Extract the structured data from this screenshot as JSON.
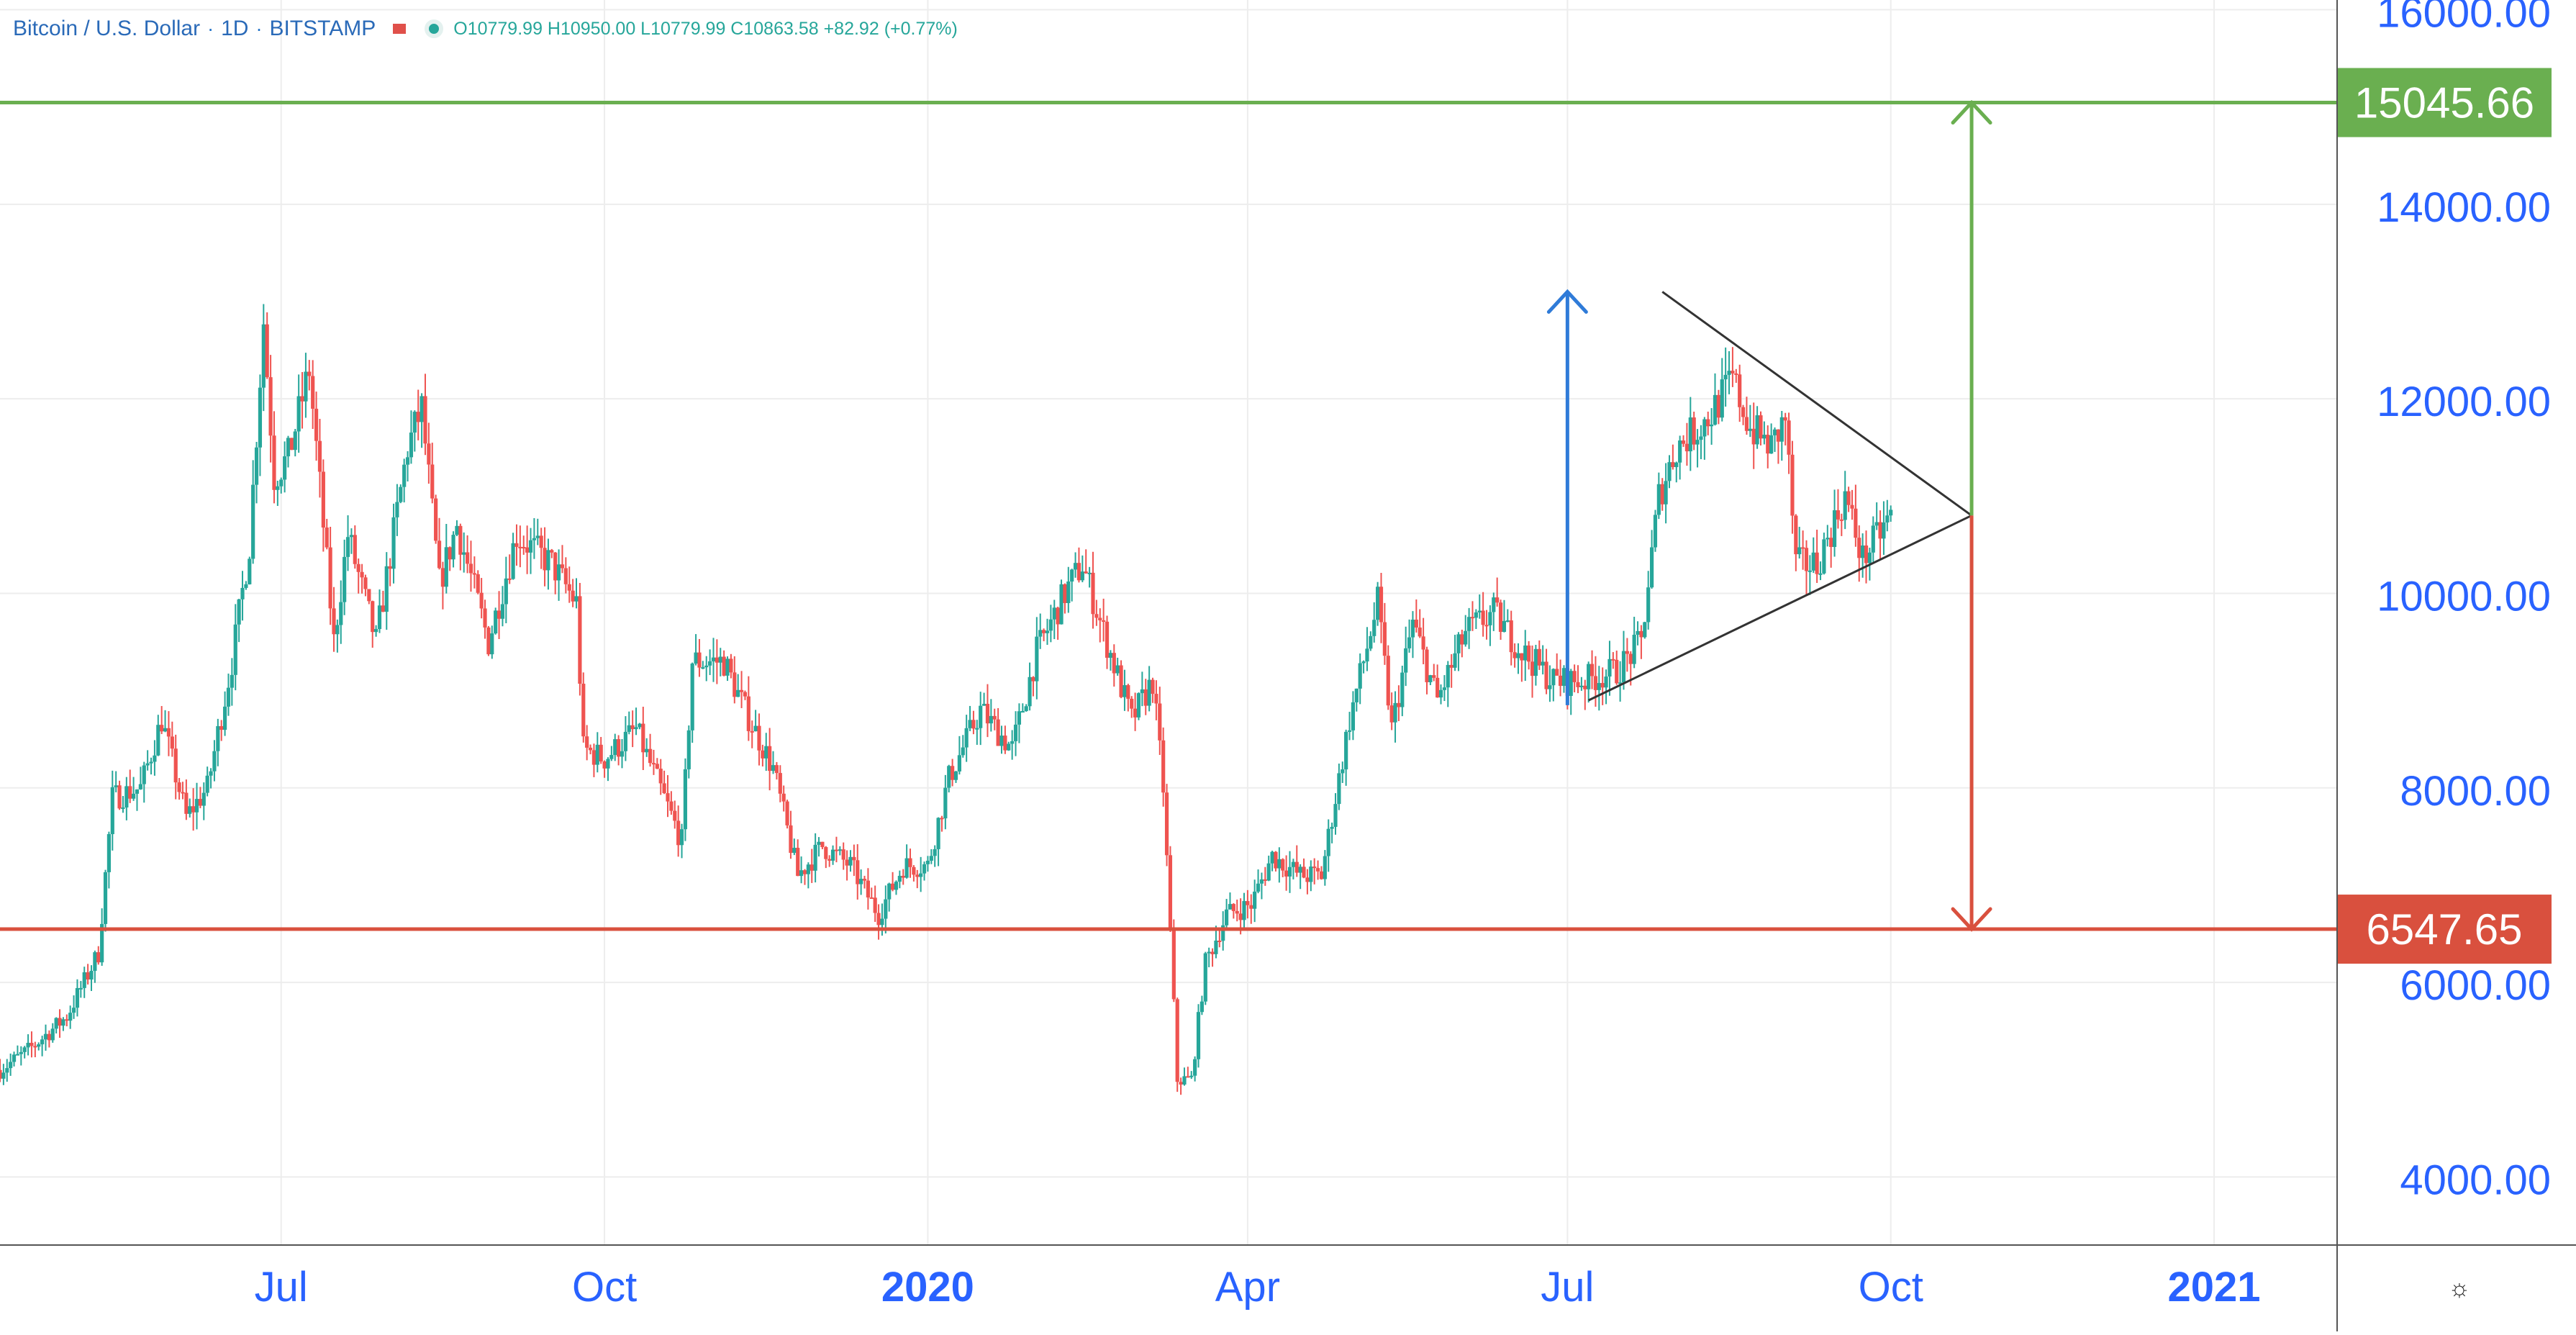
{
  "header": {
    "symbol": "Bitcoin / U.S. Dollar",
    "interval": "1D",
    "exchange": "BITSTAMP",
    "separator": "·",
    "ohlc": "O10779.99 H10950.00 L10779.99 C10863.58 +82.92 (+0.77%)"
  },
  "colors": {
    "up": "#26a69a",
    "down": "#ef5350",
    "axis_text": "#2962ff",
    "green_line": "#6aaf50",
    "red_line": "#d9503e",
    "blue_arrow": "#2f7bd8",
    "triangle": "#333333",
    "grid": "#ededed"
  },
  "icons": {
    "settings": "settings-icon"
  },
  "chart_data": {
    "type": "candlestick",
    "y_axis": {
      "ticks": [
        4000,
        6000,
        8000,
        10000,
        12000,
        14000,
        16000
      ],
      "tick_labels": [
        "4000.00",
        "6000.00",
        "8000.00",
        "10000.00",
        "12000.00",
        "14000.00",
        "16000.00"
      ],
      "range": [
        3300,
        16100
      ],
      "position": "right"
    },
    "x_axis": {
      "range": [
        "2019-04-12",
        "2021-02-05"
      ],
      "ticks": [
        {
          "date": "2019-07-01",
          "label": "Jul",
          "bold": false
        },
        {
          "date": "2019-10-01",
          "label": "Oct",
          "bold": false
        },
        {
          "date": "2020-01-01",
          "label": "2020",
          "bold": true
        },
        {
          "date": "2020-04-01",
          "label": "Apr",
          "bold": false
        },
        {
          "date": "2020-07-01",
          "label": "Jul",
          "bold": false
        },
        {
          "date": "2020-10-01",
          "label": "Oct",
          "bold": false
        },
        {
          "date": "2021-01-01",
          "label": "2021",
          "bold": true
        }
      ]
    },
    "grid": true,
    "price_path": [
      [
        "2019-04-12",
        5100
      ],
      [
        "2019-04-20",
        5300
      ],
      [
        "2019-05-01",
        5650
      ],
      [
        "2019-05-10",
        6300
      ],
      [
        "2019-05-14",
        7900
      ],
      [
        "2019-05-22",
        8000
      ],
      [
        "2019-05-28",
        8700
      ],
      [
        "2019-06-04",
        7700
      ],
      [
        "2019-06-10",
        8000
      ],
      [
        "2019-06-17",
        9300
      ],
      [
        "2019-06-22",
        10500
      ],
      [
        "2019-06-26",
        12800
      ],
      [
        "2019-06-29",
        11200
      ],
      [
        "2019-07-03",
        11400
      ],
      [
        "2019-07-09",
        12300
      ],
      [
        "2019-07-16",
        9500
      ],
      [
        "2019-07-20",
        10600
      ],
      [
        "2019-07-28",
        9500
      ],
      [
        "2019-08-06",
        11500
      ],
      [
        "2019-08-10",
        11900
      ],
      [
        "2019-08-15",
        10100
      ],
      [
        "2019-08-20",
        10700
      ],
      [
        "2019-08-29",
        9500
      ],
      [
        "2019-09-06",
        10600
      ],
      [
        "2019-09-16",
        10300
      ],
      [
        "2019-09-23",
        9900
      ],
      [
        "2019-09-25",
        8400
      ],
      [
        "2019-10-01",
        8300
      ],
      [
        "2019-10-10",
        8600
      ],
      [
        "2019-10-23",
        7450
      ],
      [
        "2019-10-26",
        9300
      ],
      [
        "2019-11-04",
        9300
      ],
      [
        "2019-11-10",
        8800
      ],
      [
        "2019-11-18",
        8200
      ],
      [
        "2019-11-25",
        7100
      ],
      [
        "2019-12-02",
        7400
      ],
      [
        "2019-12-10",
        7200
      ],
      [
        "2019-12-18",
        6700
      ],
      [
        "2019-12-25",
        7200
      ],
      [
        "2020-01-01",
        7200
      ],
      [
        "2020-01-07",
        8100
      ],
      [
        "2020-01-16",
        8800
      ],
      [
        "2020-01-25",
        8400
      ],
      [
        "2020-02-01",
        9400
      ],
      [
        "2020-02-09",
        10000
      ],
      [
        "2020-02-14",
        10300
      ],
      [
        "2020-02-20",
        9600
      ],
      [
        "2020-02-28",
        8700
      ],
      [
        "2020-03-05",
        9100
      ],
      [
        "2020-03-08",
        8000
      ],
      [
        "2020-03-12",
        5000
      ],
      [
        "2020-03-16",
        5000
      ],
      [
        "2020-03-20",
        6200
      ],
      [
        "2020-03-26",
        6700
      ],
      [
        "2020-04-02",
        6800
      ],
      [
        "2020-04-08",
        7300
      ],
      [
        "2020-04-16",
        7100
      ],
      [
        "2020-04-22",
        7100
      ],
      [
        "2020-04-30",
        8700
      ],
      [
        "2020-05-08",
        9900
      ],
      [
        "2020-05-12",
        8600
      ],
      [
        "2020-05-18",
        9700
      ],
      [
        "2020-05-25",
        8900
      ],
      [
        "2020-06-02",
        9600
      ],
      [
        "2020-06-10",
        9800
      ],
      [
        "2020-06-18",
        9400
      ],
      [
        "2020-06-27",
        9100
      ],
      [
        "2020-07-05",
        9100
      ],
      [
        "2020-07-15",
        9200
      ],
      [
        "2020-07-22",
        9500
      ],
      [
        "2020-07-27",
        11000
      ],
      [
        "2020-08-01",
        11500
      ],
      [
        "2020-08-10",
        11800
      ],
      [
        "2020-08-17",
        12200
      ],
      [
        "2020-08-22",
        11700
      ],
      [
        "2020-08-28",
        11500
      ],
      [
        "2020-09-01",
        11800
      ],
      [
        "2020-09-04",
        10300
      ],
      [
        "2020-09-10",
        10300
      ],
      [
        "2020-09-18",
        11000
      ],
      [
        "2020-09-23",
        10350
      ],
      [
        "2020-10-01",
        10800
      ]
    ],
    "annotations": [
      {
        "type": "hline",
        "value": 15045.66,
        "label": "15045.66",
        "color": "#6aaf50"
      },
      {
        "type": "hline",
        "value": 6547.65,
        "label": "6547.65",
        "color": "#d9503e"
      },
      {
        "type": "trendline",
        "name": "triangle-upper",
        "from": [
          "2020-07-28",
          13100
        ],
        "to": [
          "2020-10-24",
          10800
        ]
      },
      {
        "type": "trendline",
        "name": "triangle-lower",
        "from": [
          "2020-07-07",
          8900
        ],
        "to": [
          "2020-10-24",
          10800
        ]
      },
      {
        "type": "arrow",
        "name": "blue-measure",
        "from": [
          "2020-07-01",
          8850
        ],
        "to": [
          "2020-07-01",
          13100
        ],
        "color": "#2f7bd8"
      },
      {
        "type": "arrow",
        "name": "green-target",
        "from": [
          "2020-10-24",
          10800
        ],
        "to": [
          "2020-10-24",
          15045.66
        ],
        "color": "#6aaf50"
      },
      {
        "type": "arrow",
        "name": "red-target",
        "from": [
          "2020-10-24",
          10800
        ],
        "to": [
          "2020-10-24",
          6547.65
        ],
        "color": "#d9503e"
      }
    ]
  }
}
